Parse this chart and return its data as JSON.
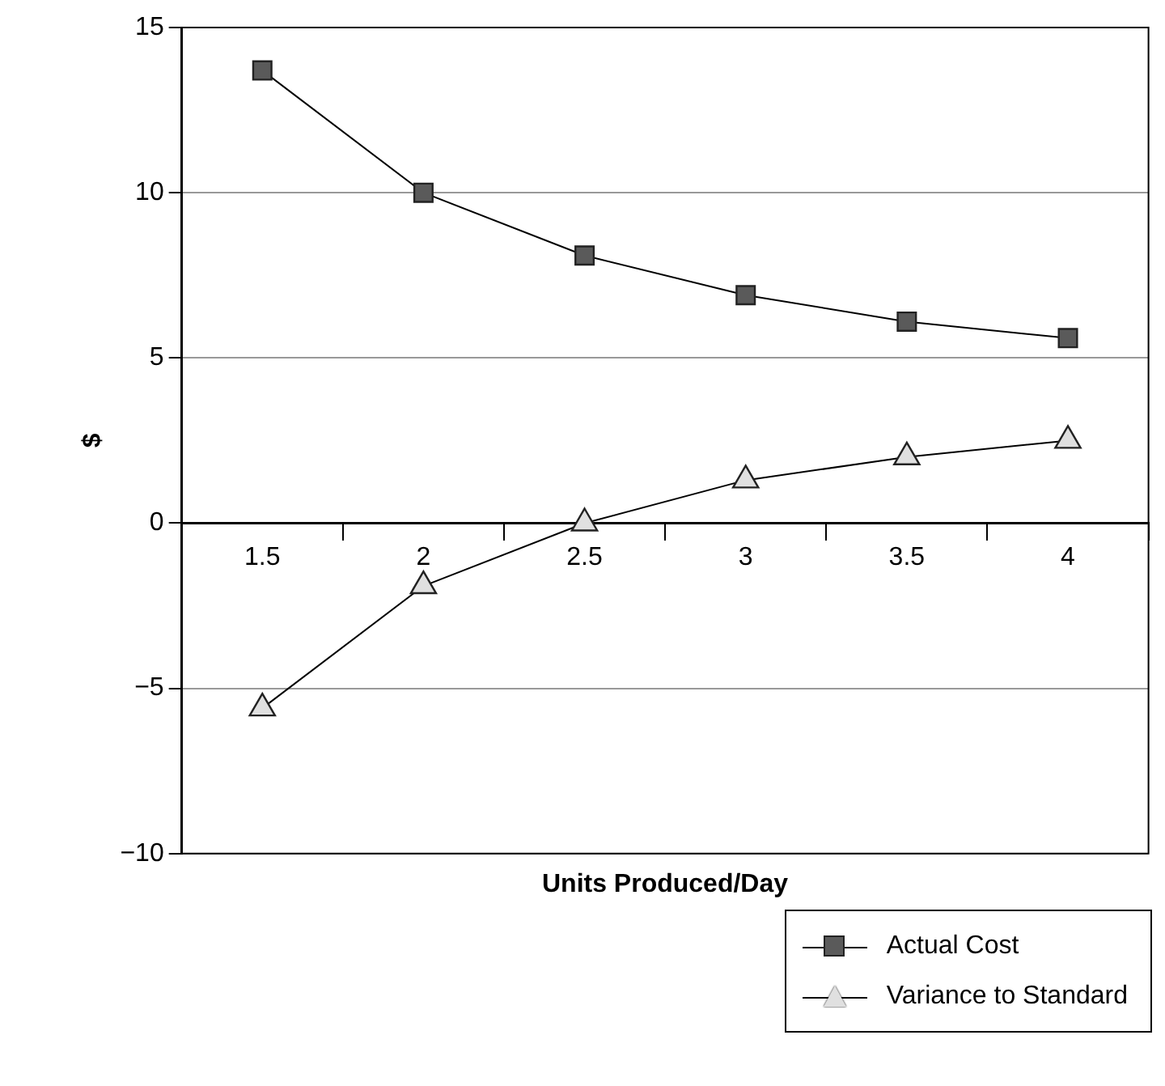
{
  "chart_data": {
    "type": "line",
    "xlabel": "Units Produced/Day",
    "ylabel": "$",
    "categories": [
      "1.5",
      "2",
      "2.5",
      "3",
      "3.5",
      "4"
    ],
    "series": [
      {
        "name": "Actual Cost",
        "color": "#5a5a5a",
        "marker": "square",
        "values": [
          13.7,
          10,
          8.1,
          6.9,
          6.1,
          5.6
        ]
      },
      {
        "name": "Variance to Standard",
        "color": "#e0e0e0",
        "marker": "triangle",
        "values": [
          -5.6,
          -1.9,
          0,
          1.3,
          2,
          2.5
        ]
      }
    ],
    "ylim": [
      -10,
      15
    ],
    "yticks": [
      -10,
      -5,
      0,
      5,
      10,
      15
    ],
    "grid": "y",
    "legend": "bottom right",
    "line_style": "solid"
  }
}
